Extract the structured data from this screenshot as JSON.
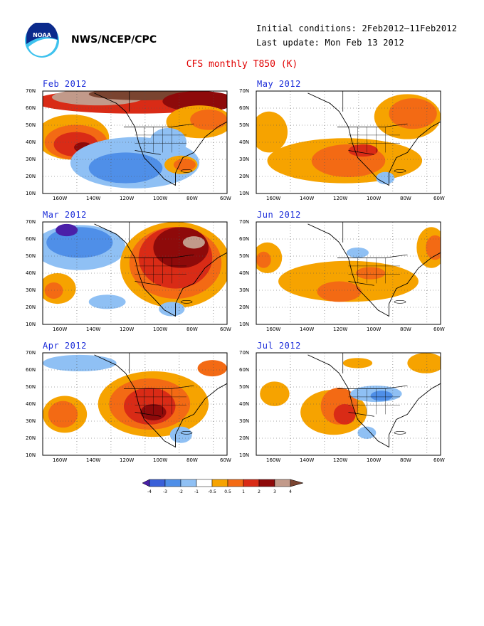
{
  "header": {
    "org": "NWS/NCEP/CPC",
    "initial_conditions": "Initial conditions: 2Feb2012–11Feb2012",
    "last_update": "Last update: Mon Feb 13 2012",
    "title": "CFS monthly T850 (K)"
  },
  "axes": {
    "lat_labels": [
      "70N",
      "60N",
      "50N",
      "40N",
      "30N",
      "20N",
      "10N"
    ],
    "lon_labels": [
      "160W",
      "140W",
      "120W",
      "100W",
      "80W",
      "60W"
    ]
  },
  "panels": [
    {
      "id": "feb",
      "title": "Feb 2012"
    },
    {
      "id": "may",
      "title": "May 2012"
    },
    {
      "id": "mar",
      "title": "Mar 2012"
    },
    {
      "id": "jun",
      "title": "Jun 2012"
    },
    {
      "id": "apr",
      "title": "Apr 2012"
    },
    {
      "id": "jul",
      "title": "Jul 2012"
    }
  ],
  "colorbar": {
    "labels": [
      "-4",
      "-3",
      "-2",
      "-1",
      "-0.5",
      "0.5",
      "1",
      "2",
      "3",
      "4"
    ],
    "colors": [
      "#4a1fa8",
      "#3a60d8",
      "#4f8fe8",
      "#8fc0f4",
      "#ffffff",
      "#f6a300",
      "#f36a14",
      "#d92b16",
      "#8e0a0a",
      "#c29a8a",
      "#7a4430"
    ]
  }
}
